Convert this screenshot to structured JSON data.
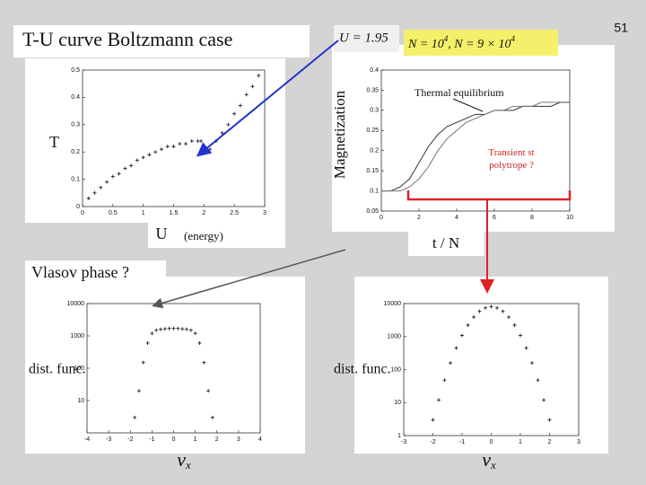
{
  "slide": {
    "number": "51",
    "title": "T-U curve Boltzmann case",
    "u_value": "U = 1.95",
    "n_parts": [
      "N = 10",
      "4",
      ", N = 9 × 10",
      "4"
    ],
    "vlasov": "Vlasov phase ?"
  },
  "chart_data": [
    {
      "type": "scatter",
      "y_label": "T",
      "x_label": "U",
      "x_label_note": "(energy)",
      "color": "#222222",
      "x": [
        0.1,
        0.2,
        0.3,
        0.4,
        0.5,
        0.6,
        0.7,
        0.8,
        0.9,
        1.0,
        1.1,
        1.2,
        1.3,
        1.4,
        1.5,
        1.6,
        1.7,
        1.8,
        1.9,
        1.95,
        2.0,
        2.05,
        2.1,
        2.2,
        2.3,
        2.4,
        2.5,
        2.6,
        2.7,
        2.8,
        2.9
      ],
      "values": [
        0.03,
        0.05,
        0.07,
        0.09,
        0.11,
        0.12,
        0.14,
        0.15,
        0.17,
        0.18,
        0.19,
        0.2,
        0.21,
        0.22,
        0.22,
        0.23,
        0.23,
        0.24,
        0.24,
        0.24,
        0.22,
        0.2,
        0.21,
        0.24,
        0.27,
        0.3,
        0.34,
        0.37,
        0.41,
        0.44,
        0.48
      ],
      "xlim": [
        0,
        3
      ],
      "xticks": [
        0,
        0.5,
        1,
        1.5,
        2,
        2.5,
        3
      ],
      "ylim": [
        0,
        0.5
      ],
      "yticks": [
        0,
        0.1,
        0.2,
        0.3,
        0.4,
        0.5
      ]
    },
    {
      "type": "line",
      "y_label": "Magnetization",
      "x_label": "t / N",
      "annotations": [
        "Thermal equilibrium",
        "Transient st polytrope ?"
      ],
      "x": [
        0,
        0.5,
        1,
        1.5,
        2,
        2.5,
        3,
        3.5,
        4,
        4.5,
        5,
        5.5,
        6,
        6.5,
        7,
        7.5,
        8,
        8.5,
        9,
        9.5,
        10
      ],
      "series": [
        {
          "color": "#333333",
          "values": [
            0.1,
            0.1,
            0.11,
            0.13,
            0.17,
            0.21,
            0.24,
            0.26,
            0.27,
            0.28,
            0.29,
            0.29,
            0.3,
            0.3,
            0.3,
            0.31,
            0.31,
            0.31,
            0.31,
            0.32,
            0.32
          ]
        },
        {
          "color": "#777777",
          "values": [
            0.1,
            0.1,
            0.1,
            0.11,
            0.13,
            0.16,
            0.2,
            0.23,
            0.25,
            0.27,
            0.28,
            0.29,
            0.3,
            0.3,
            0.31,
            0.31,
            0.31,
            0.32,
            0.32,
            0.32,
            0.32
          ]
        }
      ],
      "xlim": [
        0,
        10
      ],
      "xticks": [
        0,
        2,
        4,
        6,
        8,
        10
      ],
      "ylim": [
        0.05,
        0.4
      ],
      "yticks": [
        0.05,
        0.1,
        0.15,
        0.2,
        0.25,
        0.3,
        0.35,
        0.4
      ]
    },
    {
      "type": "scatter",
      "y_label": "dist. func.",
      "x_label": {
        "symbol": "v",
        "subscript": "x"
      },
      "log_y": true,
      "color": "#222222",
      "x": [
        -1.8,
        -1.6,
        -1.4,
        -1.2,
        -1.0,
        -0.8,
        -0.6,
        -0.4,
        -0.2,
        0,
        0.2,
        0.4,
        0.6,
        0.8,
        1.0,
        1.2,
        1.4,
        1.6,
        1.8
      ],
      "values": [
        3,
        20,
        150,
        600,
        1200,
        1500,
        1600,
        1650,
        1700,
        1700,
        1700,
        1650,
        1600,
        1500,
        1200,
        600,
        150,
        20,
        3
      ],
      "xlim": [
        -4,
        4
      ],
      "xticks": [
        -4,
        -3,
        -2,
        -1,
        0,
        1,
        2,
        3,
        4
      ],
      "ylim": [
        1,
        10000
      ],
      "yticks": [
        10,
        100,
        1000,
        10000
      ]
    },
    {
      "type": "scatter",
      "y_label": "dist. func.",
      "x_label": {
        "symbol": "v",
        "subscript": "x"
      },
      "log_y": true,
      "color": "#222222",
      "x": [
        -2.0,
        -1.8,
        -1.6,
        -1.4,
        -1.2,
        -1.0,
        -0.8,
        -0.6,
        -0.4,
        -0.2,
        0,
        0.2,
        0.4,
        0.6,
        0.8,
        1.0,
        1.2,
        1.4,
        1.6,
        1.8,
        2.0
      ],
      "values": [
        3,
        12,
        48,
        159,
        449,
        1083,
        2224,
        3894,
        5810,
        7385,
        8000,
        7385,
        5810,
        3894,
        2224,
        1083,
        449,
        159,
        48,
        12,
        3
      ],
      "xlim": [
        -3,
        3
      ],
      "xticks": [
        -3,
        -2,
        -1,
        0,
        1,
        2,
        3
      ],
      "ylim": [
        1,
        10000
      ],
      "yticks": [
        1,
        10,
        100,
        1000,
        10000
      ]
    }
  ]
}
